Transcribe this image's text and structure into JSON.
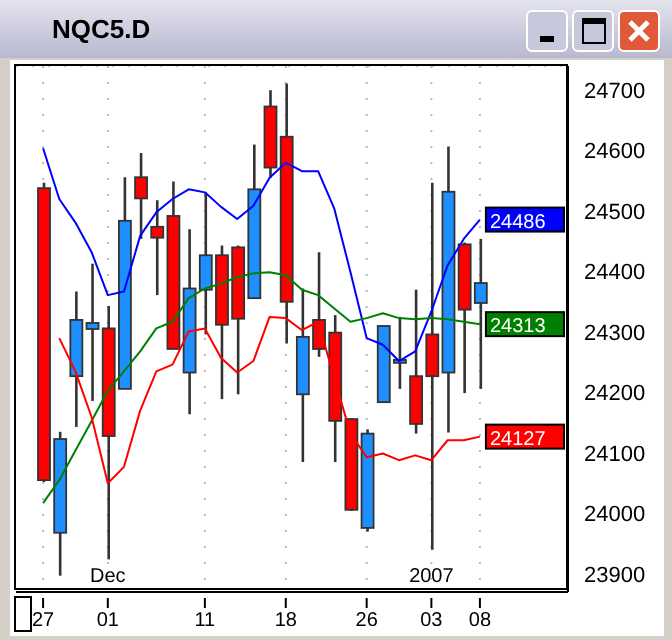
{
  "chart_data": {
    "type": "candlestick",
    "title": "NQC5.D",
    "categories": [
      "27",
      null,
      null,
      null,
      "01",
      null,
      null,
      null,
      null,
      null,
      "11",
      null,
      null,
      null,
      null,
      "18",
      null,
      null,
      null,
      null,
      "26",
      null,
      null,
      null,
      "03",
      null,
      null,
      "08"
    ],
    "ohlc": [
      [
        24538,
        24547,
        24052,
        24055
      ],
      [
        23968,
        24135,
        23897,
        24123
      ],
      [
        24227,
        24367,
        24143,
        24320
      ],
      [
        24305,
        24413,
        24186,
        24315
      ],
      [
        24306,
        24343,
        23924,
        24128
      ],
      [
        24206,
        24556,
        24206,
        24484
      ],
      [
        24556,
        24596,
        24454,
        24521
      ],
      [
        24474,
        24518,
        24361,
        24456
      ],
      [
        24492,
        24549,
        24272,
        24272
      ],
      [
        24233,
        24470,
        24164,
        24372
      ],
      [
        24370,
        24531,
        24296,
        24427
      ],
      [
        24427,
        24443,
        24189,
        24312
      ],
      [
        24440,
        24443,
        24197,
        24322
      ],
      [
        24356,
        24610,
        24356,
        24536
      ],
      [
        24673,
        24700,
        24555,
        24572
      ],
      [
        24623,
        24711,
        24281,
        24350
      ],
      [
        24197,
        24372,
        24085,
        24292
      ],
      [
        24320,
        24432,
        24259,
        24272
      ],
      [
        24299,
        24328,
        24085,
        24153
      ],
      [
        24156,
        24157,
        24004,
        24006
      ],
      [
        23976,
        24139,
        23970,
        24132
      ],
      [
        24184,
        24310,
        24184,
        24310
      ],
      [
        24249,
        24325,
        24206,
        24254
      ],
      [
        24227,
        24370,
        24132,
        24148
      ],
      [
        24296,
        24547,
        23940,
        24227
      ],
      [
        24233,
        24607,
        24134,
        24532
      ],
      [
        24445,
        24448,
        24199,
        24337
      ],
      [
        24348,
        24454,
        24206,
        24381
      ]
    ],
    "colors": [
      "#ff0000",
      "#1e8fff",
      "#1e8fff",
      "#1e8fff",
      "#ff0000",
      "#1e8fff",
      "#ff0000",
      "#ff0000",
      "#ff0000",
      "#1e8fff",
      "#1e8fff",
      "#ff0000",
      "#ff0000",
      "#1e8fff",
      "#ff0000",
      "#ff0000",
      "#1e8fff",
      "#ff0000",
      "#ff0000",
      "#ff0000",
      "#1e8fff",
      "#1e8fff",
      "#1e8fff",
      "#ff0000",
      "#ff0000",
      "#1e8fff",
      "#ff0000",
      "#1e8fff"
    ],
    "series": [
      {
        "type": "line",
        "color": "#0000ff",
        "values": [
          24604,
          24520,
          24481,
          24432,
          24361,
          24367,
          24459,
          24498,
          24520,
          24536,
          24531,
          24507,
          24487,
          24509,
          24555,
          24580,
          24566,
          24566,
          24504,
          24399,
          24290,
          24279,
          24252,
          24268,
          24334,
          24410,
          24454,
          24486
        ],
        "value_labels": [
          null,
          null,
          null,
          null,
          null,
          null,
          null,
          null,
          null,
          null,
          null,
          null,
          null,
          null,
          null,
          null,
          null,
          null,
          null,
          null,
          null,
          null,
          null,
          null,
          null,
          null,
          null,
          "24486"
        ]
      },
      {
        "type": "line",
        "color": "#008000",
        "values": [
          24017,
          24055,
          24104,
          24153,
          24203,
          24235,
          24268,
          24306,
          24317,
          24356,
          24372,
          24380,
          24391,
          24397,
          24399,
          24394,
          24370,
          24361,
          24339,
          24317,
          24323,
          24331,
          24323,
          24321,
          24323,
          24321,
          24317,
          24313
        ],
        "value_labels": [
          null,
          null,
          null,
          null,
          null,
          null,
          null,
          null,
          null,
          null,
          null,
          null,
          null,
          null,
          null,
          null,
          null,
          null,
          null,
          null,
          null,
          null,
          null,
          null,
          null,
          null,
          null,
          "24313"
        ]
      },
      {
        "type": "line",
        "color": "#ff0000",
        "values": [
          null,
          24290,
          24235,
          24159,
          24050,
          24077,
          24170,
          24235,
          24246,
          24301,
          24306,
          24257,
          24233,
          24252,
          24325,
          24323,
          24303,
          24317,
          24224,
          24132,
          24093,
          24099,
          24088,
          24096,
          24088,
          24121,
          24121,
          24127
        ],
        "value_labels": [
          null,
          null,
          null,
          null,
          null,
          null,
          null,
          null,
          null,
          null,
          null,
          null,
          null,
          null,
          null,
          null,
          null,
          null,
          null,
          null,
          null,
          null,
          null,
          null,
          null,
          null,
          null,
          "24127"
        ]
      }
    ],
    "ylim": [
      23870,
      24740
    ],
    "yticks": [
      23900,
      24000,
      24100,
      24200,
      24300,
      24400,
      24500,
      24600,
      24700
    ],
    "grid": true,
    "annotations": [
      "Dec",
      "2007"
    ]
  }
}
